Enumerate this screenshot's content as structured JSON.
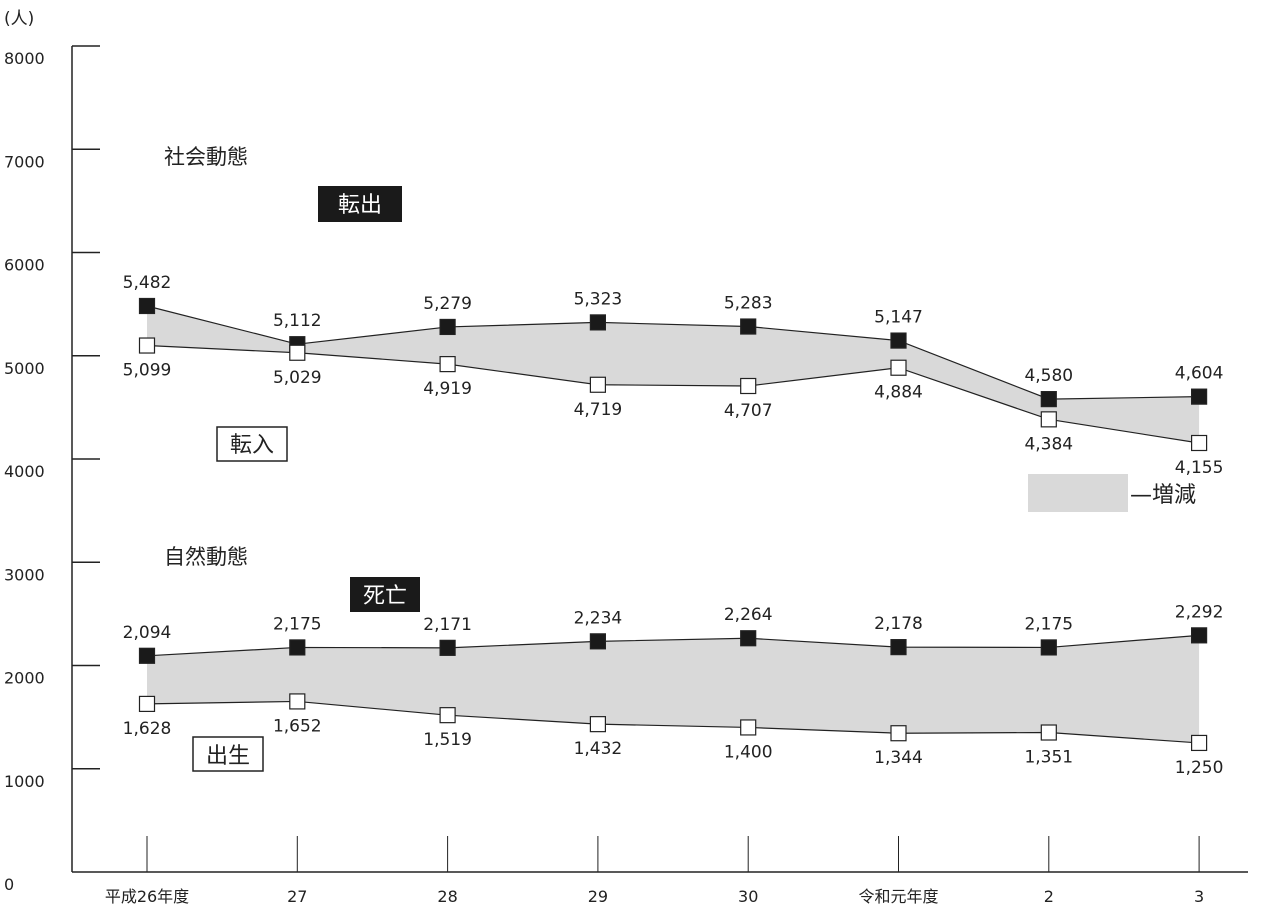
{
  "chart_data": {
    "type": "line",
    "y_unit": "(人)",
    "ylim": [
      0,
      8000
    ],
    "y_ticks": [
      0,
      1000,
      2000,
      3000,
      4000,
      5000,
      6000,
      7000,
      8000
    ],
    "categories": [
      "平成26年度",
      "27",
      "28",
      "29",
      "30",
      "令和元年度",
      "2",
      "3"
    ],
    "groups": [
      {
        "title": "社会動態",
        "series": [
          {
            "name": "転出",
            "marker": "filled-square",
            "values": [
              5482,
              5112,
              5279,
              5323,
              5283,
              5147,
              4580,
              4604
            ],
            "labels": [
              "5,482",
              "5,112",
              "5,279",
              "5,323",
              "5,283",
              "5,147",
              "4,580",
              "4,604"
            ]
          },
          {
            "name": "転入",
            "marker": "open-square",
            "values": [
              5099,
              5029,
              4919,
              4719,
              4707,
              4884,
              4384,
              4155
            ],
            "labels": [
              "5,099",
              "5,029",
              "4,919",
              "4,719",
              "4,707",
              "4,884",
              "4,384",
              "4,155"
            ]
          }
        ]
      },
      {
        "title": "自然動態",
        "series": [
          {
            "name": "死亡",
            "marker": "filled-square",
            "values": [
              2094,
              2175,
              2171,
              2234,
              2264,
              2178,
              2175,
              2292
            ],
            "labels": [
              "2,094",
              "2,175",
              "2,171",
              "2,234",
              "2,264",
              "2,178",
              "2,175",
              "2,292"
            ]
          },
          {
            "name": "出生",
            "marker": "open-square",
            "values": [
              1628,
              1652,
              1519,
              1432,
              1400,
              1344,
              1351,
              1250
            ],
            "labels": [
              "1,628",
              "1,652",
              "1,519",
              "1,432",
              "1,400",
              "1,344",
              "1,351",
              "1,250"
            ]
          }
        ]
      }
    ],
    "band_legend": {
      "label": "—増減",
      "color": "#d9d9d9"
    },
    "colors": {
      "band": "#d9d9d9",
      "line": "#222222",
      "filled_marker": "#1a1a1a",
      "open_marker": "#ffffff"
    }
  }
}
